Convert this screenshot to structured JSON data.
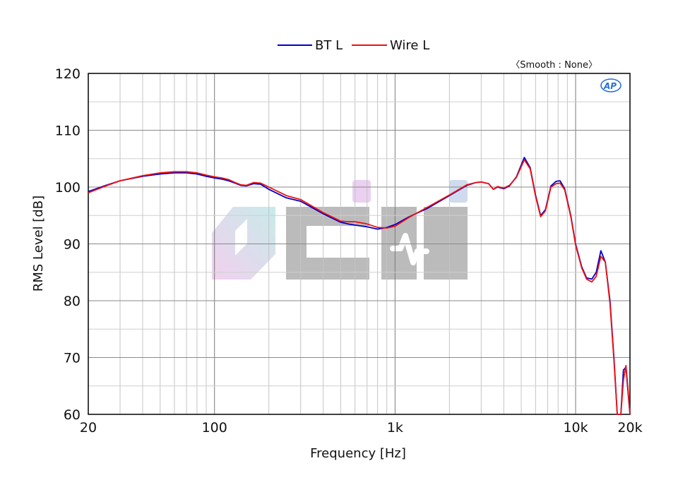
{
  "chart_data": {
    "type": "line",
    "xlabel": "Frequency [Hz]",
    "ylabel": "RMS Level [dB]",
    "x_scale": "log",
    "xlim": [
      20,
      20000
    ],
    "ylim": [
      60,
      120
    ],
    "grid": true,
    "legend_position": "top-center",
    "annotation": "〈Smooth : None〉",
    "logo": "AP",
    "watermark": "cini",
    "x_ticks": [
      {
        "value": 20,
        "label": "20"
      },
      {
        "value": 100,
        "label": "100"
      },
      {
        "value": 1000,
        "label": "1k"
      },
      {
        "value": 10000,
        "label": "10k"
      },
      {
        "value": 20000,
        "label": "20k"
      }
    ],
    "y_ticks": [
      {
        "value": 60,
        "label": "60"
      },
      {
        "value": 70,
        "label": "70"
      },
      {
        "value": 80,
        "label": "80"
      },
      {
        "value": 90,
        "label": "90"
      },
      {
        "value": 100,
        "label": "100"
      },
      {
        "value": 110,
        "label": "110"
      },
      {
        "value": 120,
        "label": "120"
      }
    ],
    "series": [
      {
        "name": "BT L",
        "color": "#0000cc",
        "points": [
          [
            20,
            99.2
          ],
          [
            25,
            100.3
          ],
          [
            30,
            101.1
          ],
          [
            40,
            101.9
          ],
          [
            50,
            102.3
          ],
          [
            60,
            102.5
          ],
          [
            70,
            102.5
          ],
          [
            80,
            102.3
          ],
          [
            90,
            101.9
          ],
          [
            100,
            101.6
          ],
          [
            110,
            101.4
          ],
          [
            120,
            101.1
          ],
          [
            130,
            100.7
          ],
          [
            140,
            100.3
          ],
          [
            150,
            100.2
          ],
          [
            165,
            100.6
          ],
          [
            180,
            100.5
          ],
          [
            200,
            99.6
          ],
          [
            250,
            98.1
          ],
          [
            300,
            97.5
          ],
          [
            400,
            95.3
          ],
          [
            500,
            93.8
          ],
          [
            550,
            93.5
          ],
          [
            600,
            93.3
          ],
          [
            700,
            93.0
          ],
          [
            800,
            92.6
          ],
          [
            900,
            92.9
          ],
          [
            1000,
            93.4
          ],
          [
            1200,
            94.8
          ],
          [
            1500,
            96.2
          ],
          [
            2000,
            98.5
          ],
          [
            2500,
            100.3
          ],
          [
            2800,
            100.8
          ],
          [
            3000,
            100.9
          ],
          [
            3300,
            100.6
          ],
          [
            3500,
            99.6
          ],
          [
            3700,
            100.0
          ],
          [
            4000,
            99.7
          ],
          [
            4300,
            100.2
          ],
          [
            4700,
            101.8
          ],
          [
            5200,
            105.2
          ],
          [
            5600,
            103.4
          ],
          [
            6000,
            98.6
          ],
          [
            6400,
            95.0
          ],
          [
            6800,
            96.0
          ],
          [
            7300,
            100.2
          ],
          [
            7800,
            101.0
          ],
          [
            8200,
            101.1
          ],
          [
            8700,
            99.7
          ],
          [
            9400,
            95.0
          ],
          [
            10000,
            90.0
          ],
          [
            10800,
            86.0
          ],
          [
            11500,
            84.0
          ],
          [
            12300,
            83.8
          ],
          [
            13000,
            85.0
          ],
          [
            13800,
            88.8
          ],
          [
            14600,
            86.8
          ],
          [
            15500,
            80.0
          ],
          [
            16300,
            70.0
          ],
          [
            17000,
            60.0
          ],
          [
            17800,
            60.0
          ],
          [
            18400,
            67.8
          ],
          [
            19000,
            68.3
          ],
          [
            19500,
            64.0
          ],
          [
            20000,
            60.0
          ]
        ]
      },
      {
        "name": "Wire L",
        "color": "#ee1111",
        "points": [
          [
            20,
            99.0
          ],
          [
            25,
            100.2
          ],
          [
            30,
            101.1
          ],
          [
            40,
            102.0
          ],
          [
            50,
            102.5
          ],
          [
            60,
            102.7
          ],
          [
            70,
            102.7
          ],
          [
            80,
            102.5
          ],
          [
            90,
            102.1
          ],
          [
            100,
            101.8
          ],
          [
            110,
            101.6
          ],
          [
            120,
            101.3
          ],
          [
            130,
            100.8
          ],
          [
            140,
            100.4
          ],
          [
            150,
            100.3
          ],
          [
            165,
            100.8
          ],
          [
            180,
            100.7
          ],
          [
            200,
            100.0
          ],
          [
            250,
            98.5
          ],
          [
            300,
            97.8
          ],
          [
            400,
            95.5
          ],
          [
            500,
            94.0
          ],
          [
            550,
            93.9
          ],
          [
            600,
            93.9
          ],
          [
            700,
            93.5
          ],
          [
            800,
            92.9
          ],
          [
            900,
            92.8
          ],
          [
            1000,
            93.1
          ],
          [
            1200,
            94.7
          ],
          [
            1500,
            96.4
          ],
          [
            2000,
            98.6
          ],
          [
            2500,
            100.4
          ],
          [
            2800,
            100.8
          ],
          [
            3000,
            100.9
          ],
          [
            3300,
            100.6
          ],
          [
            3500,
            99.6
          ],
          [
            3700,
            100.1
          ],
          [
            4000,
            99.8
          ],
          [
            4300,
            100.3
          ],
          [
            4700,
            101.7
          ],
          [
            5200,
            104.8
          ],
          [
            5600,
            103.2
          ],
          [
            6000,
            98.4
          ],
          [
            6400,
            94.8
          ],
          [
            6800,
            95.8
          ],
          [
            7300,
            100.0
          ],
          [
            7800,
            100.6
          ],
          [
            8200,
            100.7
          ],
          [
            8700,
            99.5
          ],
          [
            9400,
            94.8
          ],
          [
            10000,
            89.8
          ],
          [
            10800,
            85.8
          ],
          [
            11500,
            83.8
          ],
          [
            12300,
            83.3
          ],
          [
            13000,
            84.3
          ],
          [
            13800,
            87.8
          ],
          [
            14600,
            86.8
          ],
          [
            15500,
            79.5
          ],
          [
            16300,
            69.5
          ],
          [
            17000,
            60.0
          ],
          [
            17800,
            60.0
          ],
          [
            18400,
            66.0
          ],
          [
            19000,
            68.6
          ],
          [
            19500,
            64.5
          ],
          [
            20000,
            60.0
          ]
        ]
      }
    ]
  }
}
